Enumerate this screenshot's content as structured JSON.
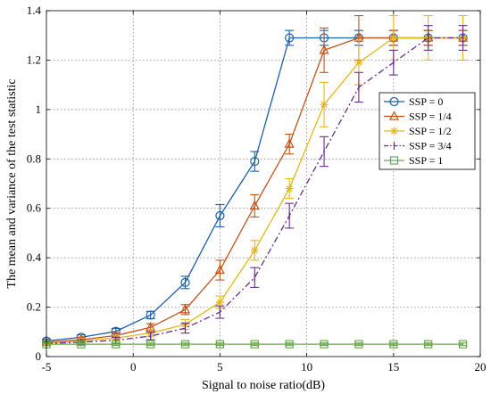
{
  "chart_data": {
    "type": "line",
    "title": "",
    "xlabel": "Signal to noise ratio(dB)",
    "ylabel": "The mean and variance of the test statistic",
    "xlim": [
      -5,
      20
    ],
    "ylim": [
      0,
      1.4
    ],
    "xticks": [
      -5,
      0,
      5,
      10,
      15,
      20
    ],
    "yticks": [
      0,
      0.2,
      0.4,
      0.6,
      0.8,
      1,
      1.2,
      1.4
    ],
    "xtick_labels": [
      "-5",
      "0",
      "5",
      "10",
      "15",
      "20"
    ],
    "ytick_labels": [
      "0",
      "0.2",
      "0.4",
      "0.6",
      "0.8",
      "1",
      "1.2",
      "1.4"
    ],
    "grid": true,
    "legend_position": "center-right",
    "x": [
      -5,
      -3,
      -1,
      1,
      3,
      5,
      7,
      9,
      11,
      13,
      15,
      17,
      19
    ],
    "series": [
      {
        "name": "SSP = 0",
        "color": "#1f5fa8",
        "marker": "circle",
        "dash": "solid",
        "values": [
          0.063,
          0.078,
          0.102,
          0.168,
          0.3,
          0.57,
          0.79,
          1.29,
          1.29,
          1.29,
          1.29,
          1.29,
          1.29
        ],
        "errors": [
          0.008,
          0.01,
          0.012,
          0.015,
          0.025,
          0.045,
          0.04,
          0.03,
          0.03,
          0.03,
          0.03,
          0.03,
          0.03
        ]
      },
      {
        "name": "SSP = 1/4",
        "color": "#c0521a",
        "marker": "triangle",
        "dash": "solid",
        "values": [
          0.058,
          0.068,
          0.085,
          0.118,
          0.19,
          0.35,
          0.61,
          0.86,
          1.24,
          1.29,
          1.29,
          1.29,
          1.29
        ],
        "errors": [
          0.008,
          0.01,
          0.012,
          0.015,
          0.02,
          0.04,
          0.045,
          0.04,
          0.09,
          0.09,
          0.03,
          0.03,
          0.03
        ]
      },
      {
        "name": "SSP = 1/2",
        "color": "#e3b81c",
        "marker": "asterisk",
        "dash": "solid",
        "values": [
          0.055,
          0.063,
          0.075,
          0.095,
          0.13,
          0.22,
          0.43,
          0.68,
          1.02,
          1.19,
          1.29,
          1.29,
          1.29
        ],
        "errors": [
          0.008,
          0.01,
          0.012,
          0.015,
          0.02,
          0.025,
          0.04,
          0.04,
          0.09,
          0.09,
          0.09,
          0.09,
          0.09
        ]
      },
      {
        "name": "SSP = 3/4",
        "color": "#6b2d8a",
        "marker": "bar",
        "dash": "dashdot",
        "values": [
          0.053,
          0.058,
          0.066,
          0.083,
          0.115,
          0.18,
          0.32,
          0.57,
          0.83,
          1.09,
          1.19,
          1.29,
          1.29
        ],
        "errors": [
          0.008,
          0.01,
          0.012,
          0.015,
          0.02,
          0.025,
          0.04,
          0.05,
          0.06,
          0.06,
          0.05,
          0.05,
          0.05
        ]
      },
      {
        "name": "SSP = 1",
        "color": "#6aa84f",
        "marker": "square",
        "dash": "solid",
        "values": [
          0.05,
          0.05,
          0.05,
          0.05,
          0.05,
          0.05,
          0.05,
          0.05,
          0.05,
          0.05,
          0.05,
          0.05,
          0.05
        ],
        "errors": [
          0.005,
          0.005,
          0.005,
          0.005,
          0.005,
          0.005,
          0.005,
          0.005,
          0.005,
          0.005,
          0.005,
          0.005,
          0.005
        ]
      }
    ]
  }
}
